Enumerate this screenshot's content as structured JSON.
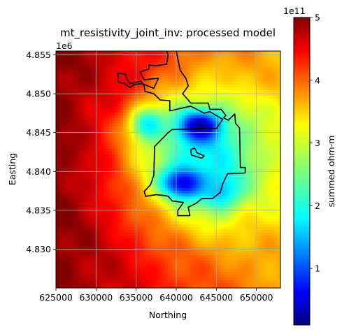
{
  "chart_data": {
    "type": "heatmap",
    "title": "mt_resistivity_joint_inv: processed model",
    "xlabel": "Northing",
    "ylabel": "Easting",
    "y_offset_label": "1e6",
    "xlim": [
      625000,
      653000
    ],
    "ylim": [
      4825000,
      4855500
    ],
    "x_ticks": [
      625000,
      630000,
      635000,
      640000,
      645000,
      650000
    ],
    "x_tick_labels": [
      "625000",
      "630000",
      "635000",
      "640000",
      "645000",
      "650000"
    ],
    "y_ticks": [
      4830000,
      4835000,
      4840000,
      4845000,
      4850000,
      4855000
    ],
    "y_tick_labels": [
      "4.830",
      "4.835",
      "4.840",
      "4.845",
      "4.850",
      "4.855"
    ],
    "grid": true,
    "colormap": "jet",
    "colorbar": {
      "label": "summed ohm-m",
      "offset_label": "1e11",
      "range": [
        0.1,
        5.0
      ],
      "ticks": [
        1,
        2,
        3,
        4,
        5
      ],
      "tick_labels": [
        "1",
        "2",
        "3",
        "4",
        "5"
      ]
    },
    "field": {
      "background_west": 5.0,
      "background_east": 3.6,
      "lows": [
        {
          "x": 643000,
          "y": 4845800,
          "value": 0.3
        },
        {
          "x": 641000,
          "y": 4838500,
          "value": 0.5
        },
        {
          "x": 636500,
          "y": 4846000,
          "value": 1.8
        },
        {
          "x": 645500,
          "y": 4837500,
          "value": 1.5
        }
      ],
      "highs": [
        {
          "x": 634500,
          "y": 4852500,
          "value": 4.6
        },
        {
          "x": 648500,
          "y": 4852000,
          "value": 3.6
        }
      ]
    },
    "outline": [
      [
        640000,
        4855500
      ],
      [
        640500,
        4853000
      ],
      [
        641200,
        4852000
      ],
      [
        641500,
        4851000
      ],
      [
        640800,
        4850000
      ],
      [
        641500,
        4849200
      ],
      [
        641800,
        4848800
      ],
      [
        644000,
        4848800
      ],
      [
        644200,
        4848000
      ],
      [
        645600,
        4848000
      ],
      [
        646200,
        4847200
      ],
      [
        645900,
        4846900
      ],
      [
        646500,
        4846600
      ],
      [
        647300,
        4847400
      ],
      [
        647400,
        4846200
      ],
      [
        647900,
        4845600
      ],
      [
        648000,
        4840500
      ],
      [
        648600,
        4840500
      ],
      [
        648600,
        4839800
      ],
      [
        646400,
        4839700
      ],
      [
        645800,
        4838400
      ],
      [
        645500,
        4837300
      ],
      [
        644500,
        4836500
      ],
      [
        643200,
        4836500
      ],
      [
        642500,
        4835900
      ],
      [
        641500,
        4835400
      ],
      [
        641700,
        4834300
      ],
      [
        640200,
        4834300
      ],
      [
        640200,
        4835000
      ],
      [
        640900,
        4836000
      ],
      [
        639500,
        4836200
      ],
      [
        639000,
        4836800
      ],
      [
        638500,
        4836900
      ],
      [
        637500,
        4837000
      ],
      [
        636200,
        4836800
      ],
      [
        636000,
        4837400
      ],
      [
        636800,
        4838300
      ],
      [
        637200,
        4839500
      ],
      [
        637300,
        4843200
      ],
      [
        639000,
        4845000
      ],
      [
        639500,
        4845400
      ],
      [
        645000,
        4845500
      ],
      [
        645800,
        4846700
      ],
      [
        644200,
        4847700
      ],
      [
        643500,
        4847500
      ],
      [
        641800,
        4848400
      ],
      [
        640500,
        4848100
      ],
      [
        639200,
        4847800
      ],
      [
        639200,
        4849100
      ],
      [
        638000,
        4849200
      ],
      [
        637200,
        4850000
      ],
      [
        636100,
        4850300
      ],
      [
        636000,
        4851000
      ],
      [
        635600,
        4851600
      ],
      [
        634200,
        4851300
      ],
      [
        633800,
        4852000
      ],
      [
        633700,
        4852500
      ],
      [
        632700,
        4852700
      ],
      [
        632800,
        4851500
      ],
      [
        633600,
        4851300
      ],
      [
        634200,
        4850800
      ],
      [
        634800,
        4851200
      ],
      [
        635800,
        4851300
      ],
      [
        637200,
        4850700
      ],
      [
        637800,
        4852000
      ],
      [
        636000,
        4851800
      ],
      [
        635500,
        4852800
      ],
      [
        636600,
        4853200
      ],
      [
        636600,
        4853700
      ],
      [
        637500,
        4853600
      ],
      [
        638800,
        4853800
      ],
      [
        639000,
        4855000
      ],
      [
        638800,
        4855500
      ]
    ],
    "inner_outline": [
      [
        641800,
        4842800
      ],
      [
        642300,
        4843000
      ],
      [
        642600,
        4842400
      ],
      [
        643500,
        4842000
      ],
      [
        643200,
        4841700
      ],
      [
        641900,
        4842100
      ],
      [
        641800,
        4842800
      ]
    ]
  }
}
